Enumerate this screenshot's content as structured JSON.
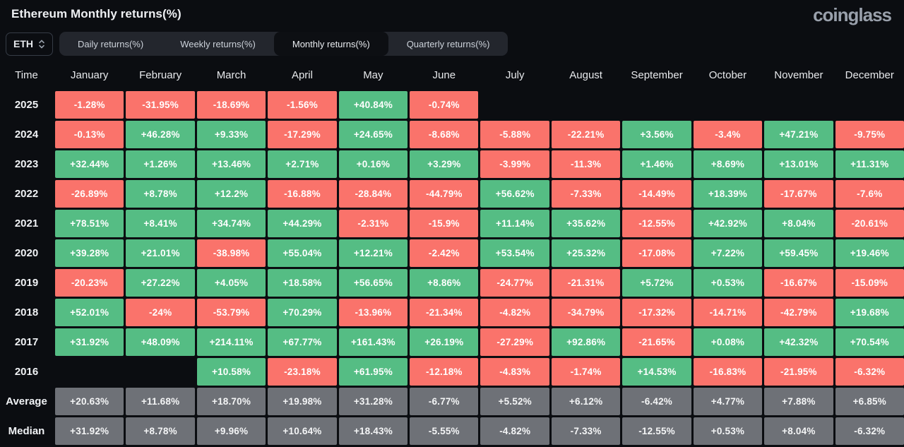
{
  "header": {
    "title": "Ethereum Monthly returns(%)",
    "logo_text": "coinglass"
  },
  "toolbar": {
    "symbol_select": {
      "value": "ETH",
      "icon": "select-updown-icon"
    },
    "tabs": [
      {
        "id": "daily",
        "label": "Daily returns(%)",
        "active": false
      },
      {
        "id": "weekly",
        "label": "Weekly returns(%)",
        "active": false
      },
      {
        "id": "monthly",
        "label": "Monthly returns(%)",
        "active": true
      },
      {
        "id": "quarterly",
        "label": "Quarterly returns(%)",
        "active": false
      }
    ]
  },
  "table": {
    "columns": [
      "Time",
      "January",
      "February",
      "March",
      "April",
      "May",
      "June",
      "July",
      "August",
      "September",
      "October",
      "November",
      "December"
    ],
    "rows": [
      {
        "label": "2025",
        "kind": "year",
        "cells": [
          "-1.28%",
          "-31.95%",
          "-18.69%",
          "-1.56%",
          "+40.84%",
          "-0.74%",
          "",
          "",
          "",
          "",
          "",
          ""
        ]
      },
      {
        "label": "2024",
        "kind": "year",
        "cells": [
          "-0.13%",
          "+46.28%",
          "+9.33%",
          "-17.29%",
          "+24.65%",
          "-8.68%",
          "-5.88%",
          "-22.21%",
          "+3.56%",
          "-3.4%",
          "+47.21%",
          "-9.75%"
        ]
      },
      {
        "label": "2023",
        "kind": "year",
        "cells": [
          "+32.44%",
          "+1.26%",
          "+13.46%",
          "+2.71%",
          "+0.16%",
          "+3.29%",
          "-3.99%",
          "-11.3%",
          "+1.46%",
          "+8.69%",
          "+13.01%",
          "+11.31%"
        ]
      },
      {
        "label": "2022",
        "kind": "year",
        "cells": [
          "-26.89%",
          "+8.78%",
          "+12.2%",
          "-16.88%",
          "-28.84%",
          "-44.79%",
          "+56.62%",
          "-7.33%",
          "-14.49%",
          "+18.39%",
          "-17.67%",
          "-7.6%"
        ]
      },
      {
        "label": "2021",
        "kind": "year",
        "cells": [
          "+78.51%",
          "+8.41%",
          "+34.74%",
          "+44.29%",
          "-2.31%",
          "-15.9%",
          "+11.14%",
          "+35.62%",
          "-12.55%",
          "+42.92%",
          "+8.04%",
          "-20.61%"
        ]
      },
      {
        "label": "2020",
        "kind": "year",
        "cells": [
          "+39.28%",
          "+21.01%",
          "-38.98%",
          "+55.04%",
          "+12.21%",
          "-2.42%",
          "+53.54%",
          "+25.32%",
          "-17.08%",
          "+7.22%",
          "+59.45%",
          "+19.46%"
        ]
      },
      {
        "label": "2019",
        "kind": "year",
        "cells": [
          "-20.23%",
          "+27.22%",
          "+4.05%",
          "+18.58%",
          "+56.65%",
          "+8.86%",
          "-24.77%",
          "-21.31%",
          "+5.72%",
          "+0.53%",
          "-16.67%",
          "-15.09%"
        ]
      },
      {
        "label": "2018",
        "kind": "year",
        "cells": [
          "+52.01%",
          "-24%",
          "-53.79%",
          "+70.29%",
          "-13.96%",
          "-21.34%",
          "-4.82%",
          "-34.79%",
          "-17.32%",
          "-14.71%",
          "-42.79%",
          "+19.68%"
        ]
      },
      {
        "label": "2017",
        "kind": "year",
        "cells": [
          "+31.92%",
          "+48.09%",
          "+214.11%",
          "+67.77%",
          "+161.43%",
          "+26.19%",
          "-27.29%",
          "+92.86%",
          "-21.65%",
          "+0.08%",
          "+42.32%",
          "+70.54%"
        ]
      },
      {
        "label": "2016",
        "kind": "year",
        "cells": [
          "",
          "",
          "+10.58%",
          "-23.18%",
          "+61.95%",
          "-12.18%",
          "-4.83%",
          "-1.74%",
          "+14.53%",
          "-16.83%",
          "-21.95%",
          "-6.32%"
        ]
      },
      {
        "label": "Average",
        "kind": "summary",
        "cells": [
          "+20.63%",
          "+11.68%",
          "+18.70%",
          "+19.98%",
          "+31.28%",
          "-6.77%",
          "+5.52%",
          "+6.12%",
          "-6.42%",
          "+4.77%",
          "+7.88%",
          "+6.85%"
        ]
      },
      {
        "label": "Median",
        "kind": "summary",
        "cells": [
          "+31.92%",
          "+8.78%",
          "+9.96%",
          "+10.64%",
          "+18.43%",
          "-5.55%",
          "-4.82%",
          "-7.33%",
          "-12.55%",
          "+0.53%",
          "+8.04%",
          "-6.32%"
        ]
      }
    ]
  },
  "colors": {
    "positive": "#55bd84",
    "negative": "#fa736b",
    "neutral": "#6e7177",
    "background": "#0b0d11",
    "tabbar_bg": "#23262d",
    "active_tab_bg": "#0d0f13"
  },
  "chart_data": {
    "type": "heatmap",
    "title": "Ethereum Monthly returns(%)",
    "unit": "%",
    "x_categories": [
      "January",
      "February",
      "March",
      "April",
      "May",
      "June",
      "July",
      "August",
      "September",
      "October",
      "November",
      "December"
    ],
    "y_categories": [
      "2025",
      "2024",
      "2023",
      "2022",
      "2021",
      "2020",
      "2019",
      "2018",
      "2017",
      "2016",
      "Average",
      "Median"
    ],
    "series": [
      {
        "name": "2025",
        "values": [
          -1.28,
          -31.95,
          -18.69,
          -1.56,
          40.84,
          -0.74,
          null,
          null,
          null,
          null,
          null,
          null
        ]
      },
      {
        "name": "2024",
        "values": [
          -0.13,
          46.28,
          9.33,
          -17.29,
          24.65,
          -8.68,
          -5.88,
          -22.21,
          3.56,
          -3.4,
          47.21,
          -9.75
        ]
      },
      {
        "name": "2023",
        "values": [
          32.44,
          1.26,
          13.46,
          2.71,
          0.16,
          3.29,
          -3.99,
          -11.3,
          1.46,
          8.69,
          13.01,
          11.31
        ]
      },
      {
        "name": "2022",
        "values": [
          -26.89,
          8.78,
          12.2,
          -16.88,
          -28.84,
          -44.79,
          56.62,
          -7.33,
          -14.49,
          18.39,
          -17.67,
          -7.6
        ]
      },
      {
        "name": "2021",
        "values": [
          78.51,
          8.41,
          34.74,
          44.29,
          -2.31,
          -15.9,
          11.14,
          35.62,
          -12.55,
          42.92,
          8.04,
          -20.61
        ]
      },
      {
        "name": "2020",
        "values": [
          39.28,
          21.01,
          -38.98,
          55.04,
          12.21,
          -2.42,
          53.54,
          25.32,
          -17.08,
          7.22,
          59.45,
          19.46
        ]
      },
      {
        "name": "2019",
        "values": [
          -20.23,
          27.22,
          4.05,
          18.58,
          56.65,
          8.86,
          -24.77,
          -21.31,
          5.72,
          0.53,
          -16.67,
          -15.09
        ]
      },
      {
        "name": "2018",
        "values": [
          52.01,
          -24,
          -53.79,
          70.29,
          -13.96,
          -21.34,
          -4.82,
          -34.79,
          -17.32,
          -14.71,
          -42.79,
          19.68
        ]
      },
      {
        "name": "2017",
        "values": [
          31.92,
          48.09,
          214.11,
          67.77,
          161.43,
          26.19,
          -27.29,
          92.86,
          -21.65,
          0.08,
          42.32,
          70.54
        ]
      },
      {
        "name": "2016",
        "values": [
          null,
          null,
          10.58,
          -23.18,
          61.95,
          -12.18,
          -4.83,
          -1.74,
          14.53,
          -16.83,
          -21.95,
          -6.32
        ]
      },
      {
        "name": "Average",
        "values": [
          20.63,
          11.68,
          18.7,
          19.98,
          31.28,
          -6.77,
          5.52,
          6.12,
          -6.42,
          4.77,
          7.88,
          6.85
        ]
      },
      {
        "name": "Median",
        "values": [
          31.92,
          8.78,
          9.96,
          10.64,
          18.43,
          -5.55,
          -4.82,
          -7.33,
          -12.55,
          0.53,
          8.04,
          -6.32
        ]
      }
    ],
    "legend": "cell color: green = positive return, red = negative return, gray = summary rows"
  }
}
